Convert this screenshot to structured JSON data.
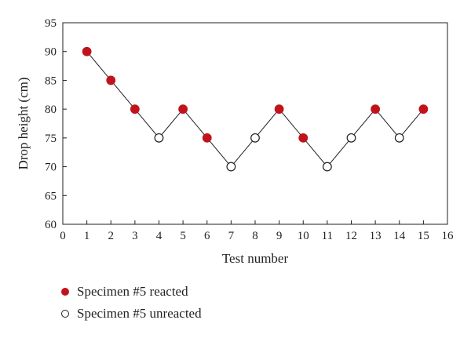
{
  "chart_data": {
    "type": "scatter",
    "xlabel": "Test number",
    "ylabel": "Drop height (cm)",
    "xlim": [
      0,
      16
    ],
    "ylim": [
      60,
      95
    ],
    "xticks": [
      0,
      1,
      2,
      3,
      4,
      5,
      6,
      7,
      8,
      9,
      10,
      11,
      12,
      13,
      14,
      15,
      16
    ],
    "yticks": [
      60,
      65,
      70,
      75,
      80,
      85,
      90,
      95
    ],
    "grid": false,
    "legend_position": "bottom-left",
    "connect_points": true,
    "points": [
      {
        "x": 1,
        "y": 90,
        "series": "reacted"
      },
      {
        "x": 2,
        "y": 85,
        "series": "reacted"
      },
      {
        "x": 3,
        "y": 80,
        "series": "reacted"
      },
      {
        "x": 4,
        "y": 75,
        "series": "unreacted"
      },
      {
        "x": 5,
        "y": 80,
        "series": "reacted"
      },
      {
        "x": 6,
        "y": 75,
        "series": "reacted"
      },
      {
        "x": 7,
        "y": 70,
        "series": "unreacted"
      },
      {
        "x": 8,
        "y": 75,
        "series": "unreacted"
      },
      {
        "x": 9,
        "y": 80,
        "series": "reacted"
      },
      {
        "x": 10,
        "y": 75,
        "series": "reacted"
      },
      {
        "x": 11,
        "y": 70,
        "series": "unreacted"
      },
      {
        "x": 12,
        "y": 75,
        "series": "unreacted"
      },
      {
        "x": 13,
        "y": 80,
        "series": "reacted"
      },
      {
        "x": 14,
        "y": 75,
        "series": "unreacted"
      },
      {
        "x": 15,
        "y": 80,
        "series": "reacted"
      }
    ],
    "series": [
      {
        "id": "reacted",
        "name": "Specimen #5 reacted",
        "color": "#c0141c",
        "fill": "#c0141c"
      },
      {
        "id": "unreacted",
        "name": "Specimen #5 unreacted",
        "color": "#231f20",
        "fill": "#ffffff"
      }
    ]
  }
}
